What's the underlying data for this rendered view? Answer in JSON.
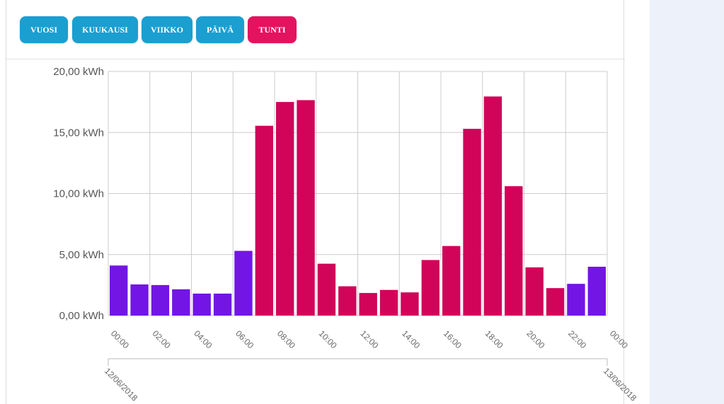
{
  "toolbar": {
    "buttons": [
      {
        "label": "VUOSI",
        "active": false
      },
      {
        "label": "KUUKAUSI",
        "active": false
      },
      {
        "label": "VIIKKO",
        "active": false
      },
      {
        "label": "PÄIVÄ",
        "active": false
      },
      {
        "label": "TUNTI",
        "active": true
      }
    ]
  },
  "colors": {
    "button_blue": "#1a9fd0",
    "button_active": "#e3135f",
    "bar_offpeak": "#7315e5",
    "bar_peak": "#d1045a",
    "grid": "#cccccc"
  },
  "chart_data": {
    "type": "bar",
    "title": "",
    "xlabel": "",
    "ylabel": "",
    "ylim": [
      0,
      20
    ],
    "y_ticks": [
      "0,00 kWh",
      "5,00 kWh",
      "10,00 kWh",
      "15,00 kWh",
      "20,00 kWh"
    ],
    "x_ticks": [
      "00:00",
      "02:00",
      "04:00",
      "06:00",
      "08:00",
      "10:00",
      "12:00",
      "14:00",
      "16:00",
      "18:00",
      "20:00",
      "22:00",
      "00:00"
    ],
    "date_labels": [
      "12/06/2018",
      "13/06/2018"
    ],
    "categories": [
      "00",
      "01",
      "02",
      "03",
      "04",
      "05",
      "06",
      "07",
      "08",
      "09",
      "10",
      "11",
      "12",
      "13",
      "14",
      "15",
      "16",
      "17",
      "18",
      "19",
      "20",
      "21",
      "22",
      "23"
    ],
    "values": [
      4.1,
      2.55,
      2.5,
      2.15,
      1.8,
      1.8,
      5.3,
      15.55,
      17.5,
      17.65,
      4.25,
      2.4,
      1.85,
      2.1,
      1.9,
      4.55,
      5.7,
      15.3,
      17.95,
      10.6,
      3.95,
      2.25,
      2.6,
      4.0
    ],
    "tariff": [
      "off",
      "off",
      "off",
      "off",
      "off",
      "off",
      "off",
      "peak",
      "peak",
      "peak",
      "peak",
      "peak",
      "peak",
      "peak",
      "peak",
      "peak",
      "peak",
      "peak",
      "peak",
      "peak",
      "peak",
      "peak",
      "off",
      "off"
    ],
    "grid": true
  }
}
